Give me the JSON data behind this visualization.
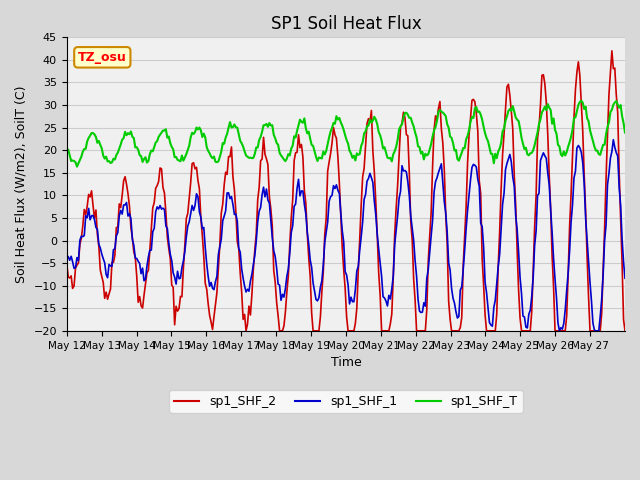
{
  "title": "SP1 Soil Heat Flux",
  "xlabel": "Time",
  "ylabel": "Soil Heat Flux (W/m2), SoilT (C)",
  "ylim": [
    -20,
    45
  ],
  "xlim": [
    0,
    16
  ],
  "color_shf2": "#cc0000",
  "color_shf1": "#0000cc",
  "color_shft": "#00cc00",
  "annotation_text": "TZ_osu",
  "annotation_bg": "#ffffcc",
  "annotation_border": "#cc8800",
  "legend_labels": [
    "sp1_SHF_2",
    "sp1_SHF_1",
    "sp1_SHF_T"
  ],
  "x_tick_labels": [
    "May 12",
    "May 13",
    "May 14",
    "May 15",
    "May 16",
    "May 17",
    "May 18",
    "May 19",
    "May 20",
    "May 21",
    "May 22",
    "May 23",
    "May 24",
    "May 25",
    "May 26",
    "May 27"
  ],
  "yticks": [
    -20,
    -15,
    -10,
    -5,
    0,
    5,
    10,
    15,
    20,
    25,
    30,
    35,
    40,
    45
  ],
  "grid_color": "#cccccc",
  "bg_color": "#e8e8e8",
  "plot_bg": "#f0f0f0"
}
